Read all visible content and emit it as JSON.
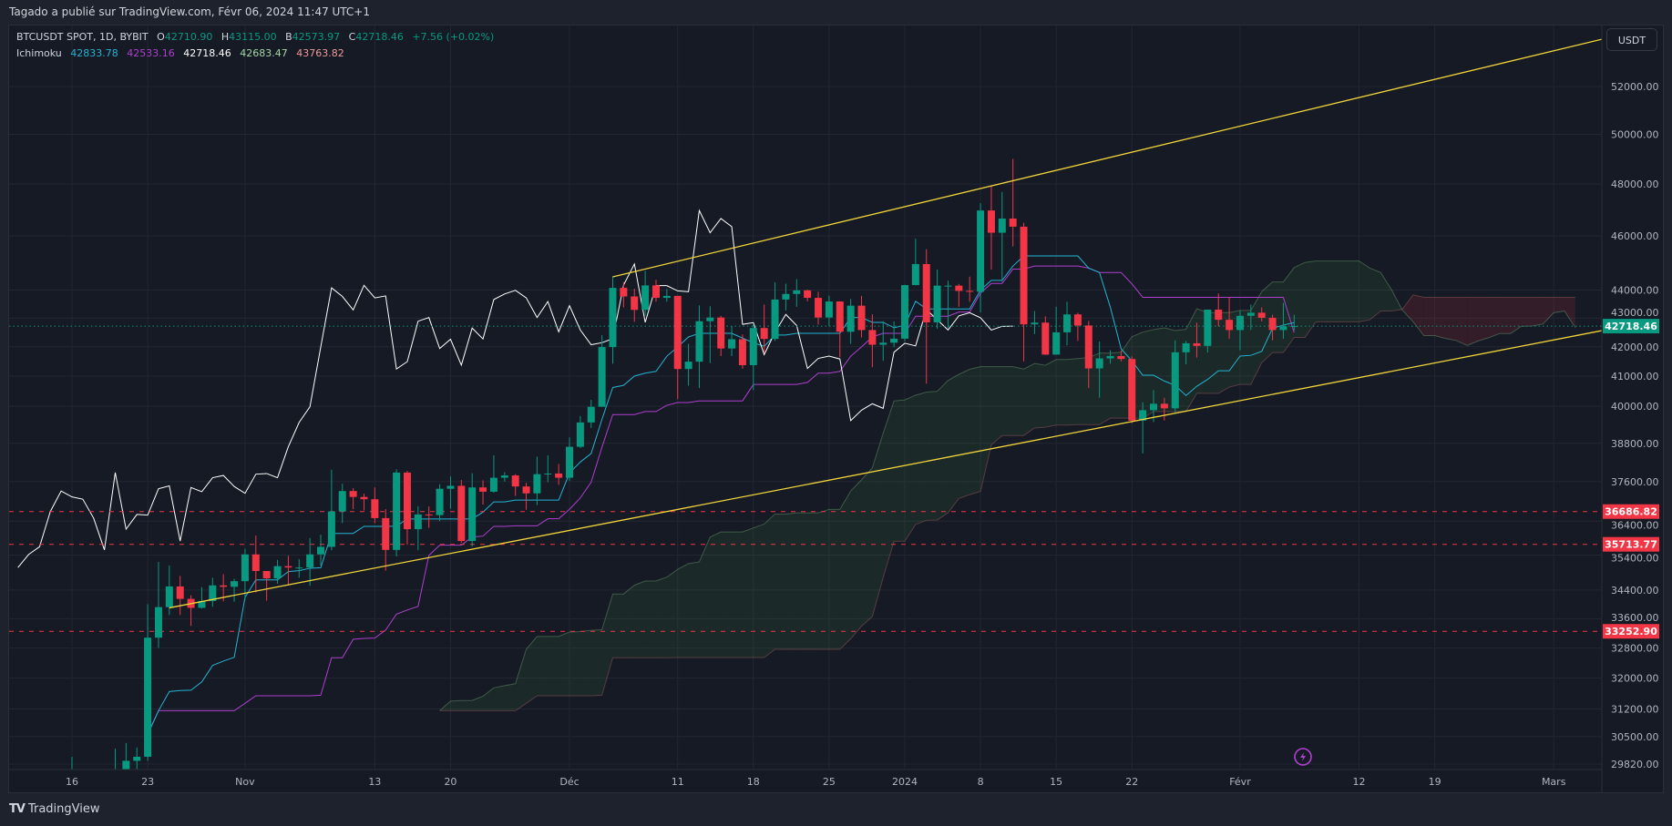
{
  "header": {
    "published": "Tagado a publié sur TradingView.com, Févr 06, 2024 11:47 UTC+1"
  },
  "legend": {
    "symbol": "BTCUSDT SPOT, 1D, BYBIT",
    "open_label": "O",
    "open": "42710.90",
    "high_label": "H",
    "high": "43115.00",
    "low_label": "B",
    "low": "42573.97",
    "close_label": "C",
    "close": "42718.46",
    "change": "+7.56 (+0.02%)",
    "indicator": "Ichimoku",
    "ichimoku_values": [
      {
        "value": "42833.78",
        "color": "#22b5d3"
      },
      {
        "value": "42533.16",
        "color": "#b03fd0"
      },
      {
        "value": "42718.46",
        "color": "#ffffff"
      },
      {
        "value": "42683.47",
        "color": "#a5d6a7"
      },
      {
        "value": "43763.82",
        "color": "#ef9a9a"
      }
    ]
  },
  "currency_button": "USDT",
  "footer": {
    "brand": "TradingView",
    "logo_text": "TV"
  },
  "colors": {
    "up": "#089981",
    "down": "#f23645",
    "tenkan": "#22b5d3",
    "kijun": "#b03fd0",
    "chikou": "#ffffff",
    "trendline": "#f0d43a",
    "level": "#f23645",
    "cloud_up": "#4caf50",
    "cloud_down": "#f23645",
    "background": "#161a25"
  },
  "chart_data": {
    "type": "candlestick",
    "scale": "log",
    "grid": true,
    "ylim": [
      29400,
      54500
    ],
    "indicator": "Ichimoku (9, 26, 52, 26)",
    "y_ticks": [
      "52000.00",
      "50000.00",
      "48000.00",
      "46000.00",
      "44000.00",
      "43000.00",
      "42000.00",
      "41000.00",
      "40000.00",
      "38800.00",
      "37600.00",
      "36400.00",
      "35400.00",
      "34400.00",
      "33600.00",
      "32800.00",
      "32000.00",
      "31200.00",
      "30500.00",
      "29820.00"
    ],
    "x_ticks": [
      {
        "label": "16",
        "date": "2023-10-16"
      },
      {
        "label": "23",
        "date": "2023-10-23"
      },
      {
        "label": "Nov",
        "date": "2023-11-01"
      },
      {
        "label": "13",
        "date": "2023-11-13"
      },
      {
        "label": "20",
        "date": "2023-11-20"
      },
      {
        "label": "Déc",
        "date": "2023-12-01"
      },
      {
        "label": "11",
        "date": "2023-12-11"
      },
      {
        "label": "18",
        "date": "2023-12-18"
      },
      {
        "label": "25",
        "date": "2023-12-25"
      },
      {
        "label": "2024",
        "date": "2024-01-01"
      },
      {
        "label": "8",
        "date": "2024-01-08"
      },
      {
        "label": "15",
        "date": "2024-01-15"
      },
      {
        "label": "22",
        "date": "2024-01-22"
      },
      {
        "label": "Févr",
        "date": "2024-02-01"
      },
      {
        "label": "12",
        "date": "2024-02-12"
      },
      {
        "label": "19",
        "date": "2024-02-19"
      },
      {
        "label": "Mars",
        "date": "2024-03-01"
      }
    ],
    "price_markers": [
      {
        "label": "42718.46",
        "value": 42718.46,
        "color": "#089981",
        "line": "dotted"
      },
      {
        "label": "36686.82",
        "value": 36686.82,
        "color": "#f23645",
        "line": "dashed"
      },
      {
        "label": "35713.77",
        "value": 35713.77,
        "color": "#f23645",
        "line": "dashed"
      },
      {
        "label": "33252.90",
        "value": 33252.9,
        "color": "#f23645",
        "line": "dashed"
      }
    ],
    "trendlines": [
      {
        "from": {
          "date": "2023-12-05",
          "price": 44480
        },
        "to": {
          "date": "2024-03-06",
          "price": 54120
        }
      },
      {
        "from": {
          "date": "2023-10-25",
          "price": 33900
        },
        "to": {
          "date": "2024-03-06",
          "price": 42600
        }
      }
    ],
    "candle_start": "2023-10-16",
    "candle_columns": [
      "open",
      "high",
      "low",
      "close"
    ],
    "candles": [
      [
        27160,
        30000,
        27110,
        28500
      ],
      [
        28500,
        28600,
        28100,
        28400
      ],
      [
        28400,
        28980,
        28150,
        28330
      ],
      [
        28330,
        28920,
        28170,
        28720
      ],
      [
        28720,
        30200,
        28600,
        29680
      ],
      [
        29680,
        30340,
        29470,
        29900
      ],
      [
        29900,
        30230,
        29700,
        30000
      ],
      [
        30000,
        34000,
        29900,
        33080
      ],
      [
        33080,
        35200,
        32800,
        33920
      ],
      [
        33920,
        35100,
        33700,
        34500
      ],
      [
        34500,
        34800,
        33700,
        34150
      ],
      [
        34150,
        34250,
        33400,
        33900
      ],
      [
        33900,
        34480,
        33880,
        34090
      ],
      [
        34090,
        34750,
        33930,
        34530
      ],
      [
        34530,
        34850,
        34080,
        34490
      ],
      [
        34490,
        34720,
        34070,
        34650
      ],
      [
        34650,
        35580,
        34120,
        35420
      ],
      [
        35420,
        35970,
        34330,
        34940
      ],
      [
        34940,
        34940,
        34100,
        34730
      ],
      [
        34730,
        35260,
        34580,
        35080
      ],
      [
        35080,
        35380,
        34530,
        35040
      ],
      [
        35040,
        35280,
        34750,
        35040
      ],
      [
        35040,
        35900,
        34520,
        35420
      ],
      [
        35420,
        36000,
        35100,
        35640
      ],
      [
        35640,
        37970,
        35540,
        36690
      ],
      [
        36690,
        37530,
        36340,
        37310
      ],
      [
        37310,
        37400,
        36760,
        37130
      ],
      [
        37130,
        37230,
        36720,
        37060
      ],
      [
        37060,
        37420,
        36340,
        36490
      ],
      [
        36490,
        36760,
        34950,
        35550
      ],
      [
        35550,
        37980,
        35360,
        37880
      ],
      [
        37880,
        37930,
        35700,
        36160
      ],
      [
        36160,
        36850,
        35540,
        36600
      ],
      [
        36600,
        36840,
        36200,
        36580
      ],
      [
        36580,
        37520,
        36400,
        37380
      ],
      [
        37380,
        37760,
        36770,
        37470
      ],
      [
        37470,
        37650,
        35760,
        35810
      ],
      [
        35810,
        37860,
        35650,
        37420
      ],
      [
        37420,
        37640,
        36900,
        37290
      ],
      [
        37290,
        38420,
        37260,
        37720
      ],
      [
        37720,
        37890,
        37600,
        37790
      ],
      [
        37790,
        37830,
        37160,
        37450
      ],
      [
        37450,
        37560,
        36740,
        37240
      ],
      [
        37240,
        38380,
        36880,
        37830
      ],
      [
        37830,
        38420,
        37580,
        37850
      ],
      [
        37850,
        38150,
        37500,
        37720
      ],
      [
        37720,
        38990,
        37620,
        38690
      ],
      [
        38690,
        39680,
        38650,
        39470
      ],
      [
        39470,
        40210,
        39290,
        39980
      ],
      [
        39980,
        42400,
        39980,
        41990
      ],
      [
        41990,
        44500,
        41420,
        44080
      ],
      [
        44080,
        44290,
        43380,
        43770
      ],
      [
        43770,
        44050,
        42870,
        43290
      ],
      [
        43290,
        44700,
        43080,
        44170
      ],
      [
        44170,
        44370,
        43580,
        43720
      ],
      [
        43720,
        44040,
        43580,
        43790
      ],
      [
        43790,
        43800,
        40230,
        41240
      ],
      [
        41240,
        42100,
        40680,
        41490
      ],
      [
        41490,
        43450,
        40600,
        42890
      ],
      [
        42890,
        43420,
        41440,
        43020
      ],
      [
        43020,
        43080,
        41680,
        41940
      ],
      [
        41940,
        42720,
        41680,
        42260
      ],
      [
        42260,
        42430,
        41250,
        41370
      ],
      [
        41370,
        42760,
        40530,
        42650
      ],
      [
        42650,
        43480,
        41800,
        42270
      ],
      [
        42270,
        44280,
        42200,
        43660
      ],
      [
        43660,
        44230,
        43270,
        43860
      ],
      [
        43860,
        44400,
        43400,
        43990
      ],
      [
        43990,
        44020,
        43590,
        43720
      ],
      [
        43720,
        43940,
        42770,
        43020
      ],
      [
        43020,
        43800,
        42720,
        43590
      ],
      [
        43590,
        43600,
        41640,
        42520
      ],
      [
        42520,
        43680,
        42100,
        43440
      ],
      [
        43440,
        43790,
        42320,
        42580
      ],
      [
        42580,
        43130,
        41300,
        42070
      ],
      [
        42070,
        42890,
        41520,
        42140
      ],
      [
        42140,
        42880,
        41980,
        42280
      ],
      [
        42280,
        44190,
        42190,
        44180
      ],
      [
        44180,
        45900,
        44170,
        44950
      ],
      [
        44950,
        45500,
        40750,
        42850
      ],
      [
        42850,
        44750,
        42630,
        44160
      ],
      [
        44160,
        44340,
        42640,
        44160
      ],
      [
        44160,
        44220,
        43400,
        43970
      ],
      [
        43970,
        44490,
        43580,
        43940
      ],
      [
        43940,
        47250,
        43200,
        46970
      ],
      [
        46970,
        47950,
        44740,
        46120
      ],
      [
        46120,
        47690,
        44300,
        46660
      ],
      [
        46660,
        49000,
        45600,
        46350
      ],
      [
        46350,
        46500,
        41500,
        42780
      ],
      [
        42780,
        43250,
        42440,
        42840
      ],
      [
        42840,
        43060,
        41720,
        41730
      ],
      [
        41730,
        43400,
        41730,
        42500
      ],
      [
        42500,
        43580,
        42050,
        43130
      ],
      [
        43130,
        43190,
        42200,
        42740
      ],
      [
        42740,
        42900,
        40600,
        41260
      ],
      [
        41260,
        42180,
        40280,
        41600
      ],
      [
        41600,
        41880,
        41420,
        41680
      ],
      [
        41680,
        41870,
        41500,
        41580
      ],
      [
        41580,
        41670,
        39450,
        39530
      ],
      [
        39530,
        40130,
        38480,
        39870
      ],
      [
        39870,
        40530,
        39480,
        40080
      ],
      [
        40080,
        40280,
        39530,
        39930
      ],
      [
        39930,
        42220,
        39800,
        41810
      ],
      [
        41810,
        42200,
        41400,
        42120
      ],
      [
        42120,
        42840,
        41630,
        42030
      ],
      [
        42030,
        43300,
        41800,
        43300
      ],
      [
        43300,
        43880,
        42710,
        42940
      ],
      [
        42940,
        43740,
        42280,
        42580
      ],
      [
        42580,
        43270,
        41880,
        43080
      ],
      [
        43080,
        43480,
        42580,
        43190
      ],
      [
        43190,
        43380,
        42880,
        43010
      ],
      [
        43010,
        43120,
        42220,
        42580
      ],
      [
        42580,
        43540,
        42280,
        42710
      ],
      [
        42710,
        43115,
        42574,
        42718
      ]
    ]
  }
}
